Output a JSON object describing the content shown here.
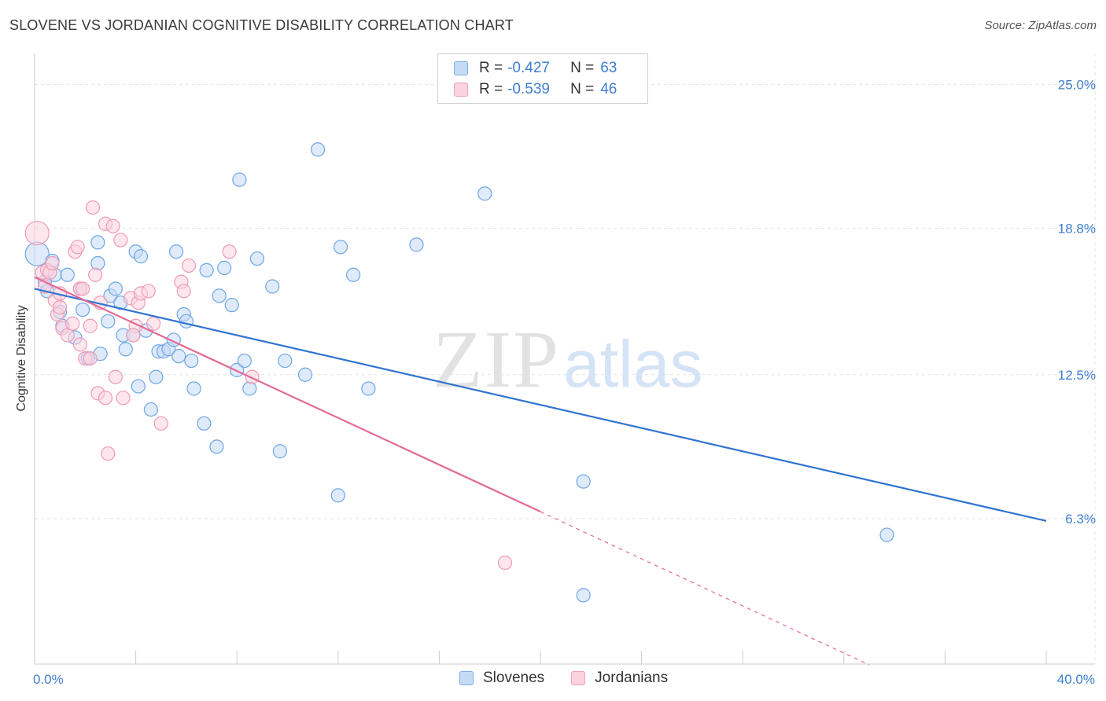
{
  "title": "SLOVENE VS JORDANIAN COGNITIVE DISABILITY CORRELATION CHART",
  "source": "Source: ZipAtlas.com",
  "watermark": {
    "zip": "ZIP",
    "atlas": "atlas"
  },
  "legend": {
    "series": [
      {
        "r_label": "R =",
        "r_value": "-0.427",
        "n_label": "N =",
        "n_value": "63",
        "color": "#7aaee8",
        "fill": "#c5dbf5"
      },
      {
        "r_label": "R =",
        "r_value": "-0.539",
        "n_label": "N =",
        "n_value": "46",
        "color": "#f0a0b8",
        "fill": "#fbd3df"
      }
    ]
  },
  "chart_data": {
    "type": "scatter",
    "title": "SLOVENE VS JORDANIAN COGNITIVE DISABILITY CORRELATION CHART",
    "xlabel": "",
    "ylabel": "Cognitive Disability",
    "xlim": [
      0,
      40
    ],
    "ylim": [
      0,
      26
    ],
    "y_ticks": [
      {
        "value": 6.3,
        "label": "6.3%"
      },
      {
        "value": 12.5,
        "label": "12.5%"
      },
      {
        "value": 18.8,
        "label": "18.8%"
      },
      {
        "value": 25.0,
        "label": "25.0%"
      }
    ],
    "x_tick_labels": [
      {
        "value": 0,
        "label": "0.0%"
      },
      {
        "value": 40,
        "label": "40.0%"
      }
    ],
    "x_minor_ticks": [
      0,
      4,
      8,
      12,
      16,
      20,
      24,
      28,
      32,
      36,
      40
    ],
    "grid": true,
    "series": [
      {
        "name": "Slovenes",
        "color": "#6ea6e6",
        "fill": "#c5dbf5",
        "trend_color": "#2f74d0",
        "trend": {
          "x0": 0,
          "y0": 16.2,
          "x1": 40,
          "y1": 6.2
        },
        "points": [
          [
            0.1,
            17.7
          ],
          [
            0.4,
            16.5
          ],
          [
            0.5,
            16.1
          ],
          [
            0.7,
            17.4
          ],
          [
            0.8,
            16.8
          ],
          [
            1.0,
            15.2
          ],
          [
            1.1,
            14.6
          ],
          [
            1.3,
            16.8
          ],
          [
            1.6,
            14.1
          ],
          [
            1.8,
            16.2
          ],
          [
            1.9,
            15.3
          ],
          [
            2.1,
            13.2
          ],
          [
            2.5,
            17.3
          ],
          [
            2.5,
            18.2
          ],
          [
            2.6,
            13.4
          ],
          [
            2.9,
            14.8
          ],
          [
            3.0,
            15.9
          ],
          [
            3.2,
            16.2
          ],
          [
            3.4,
            15.6
          ],
          [
            3.5,
            14.2
          ],
          [
            3.6,
            13.6
          ],
          [
            3.9,
            14.2
          ],
          [
            4.0,
            17.8
          ],
          [
            4.1,
            12.0
          ],
          [
            4.2,
            17.6
          ],
          [
            4.4,
            14.4
          ],
          [
            4.6,
            11.0
          ],
          [
            4.8,
            12.4
          ],
          [
            4.9,
            13.5
          ],
          [
            5.1,
            13.5
          ],
          [
            5.3,
            13.6
          ],
          [
            5.5,
            14.0
          ],
          [
            5.6,
            17.8
          ],
          [
            5.7,
            13.3
          ],
          [
            5.9,
            15.1
          ],
          [
            6.0,
            14.8
          ],
          [
            6.2,
            13.1
          ],
          [
            6.3,
            11.9
          ],
          [
            6.7,
            10.4
          ],
          [
            6.8,
            17.0
          ],
          [
            7.2,
            9.4
          ],
          [
            7.3,
            15.9
          ],
          [
            7.5,
            17.1
          ],
          [
            7.8,
            15.5
          ],
          [
            8.0,
            12.7
          ],
          [
            8.1,
            20.9
          ],
          [
            8.3,
            13.1
          ],
          [
            8.5,
            11.9
          ],
          [
            8.8,
            17.5
          ],
          [
            9.4,
            16.3
          ],
          [
            9.7,
            9.2
          ],
          [
            9.9,
            13.1
          ],
          [
            10.7,
            12.5
          ],
          [
            11.2,
            22.2
          ],
          [
            12.0,
            7.3
          ],
          [
            12.1,
            18.0
          ],
          [
            12.6,
            16.8
          ],
          [
            13.2,
            11.9
          ],
          [
            15.1,
            18.1
          ],
          [
            17.8,
            20.3
          ],
          [
            21.7,
            7.9
          ],
          [
            33.7,
            5.6
          ],
          [
            21.7,
            3.0
          ]
        ]
      },
      {
        "name": "Jordanians",
        "color": "#f09ab5",
        "fill": "#fbd3df",
        "trend_color": "#e46a92",
        "trend": {
          "x0": 0,
          "y0": 16.7,
          "x1": 20,
          "y1": 6.6
        },
        "trend_dashed": {
          "x0": 20,
          "y0": 6.6,
          "x1": 33,
          "y1": 0.0
        },
        "points": [
          [
            0.1,
            18.6
          ],
          [
            0.3,
            16.9
          ],
          [
            0.4,
            16.3
          ],
          [
            0.5,
            17.0
          ],
          [
            0.6,
            16.9
          ],
          [
            0.7,
            17.3
          ],
          [
            0.8,
            15.7
          ],
          [
            0.9,
            15.1
          ],
          [
            1.0,
            15.4
          ],
          [
            1.1,
            14.5
          ],
          [
            1.3,
            14.2
          ],
          [
            1.5,
            14.7
          ],
          [
            1.6,
            17.8
          ],
          [
            1.7,
            18.0
          ],
          [
            1.8,
            13.8
          ],
          [
            1.8,
            16.2
          ],
          [
            1.9,
            16.2
          ],
          [
            2.0,
            13.2
          ],
          [
            2.2,
            13.2
          ],
          [
            2.2,
            14.6
          ],
          [
            2.3,
            19.7
          ],
          [
            2.4,
            16.8
          ],
          [
            2.5,
            11.7
          ],
          [
            2.6,
            15.6
          ],
          [
            2.8,
            11.5
          ],
          [
            2.9,
            9.1
          ],
          [
            2.8,
            19.0
          ],
          [
            3.1,
            18.9
          ],
          [
            3.2,
            12.4
          ],
          [
            3.4,
            18.3
          ],
          [
            3.5,
            11.5
          ],
          [
            3.8,
            15.8
          ],
          [
            4.0,
            14.6
          ],
          [
            4.1,
            15.6
          ],
          [
            4.2,
            16.0
          ],
          [
            4.5,
            16.1
          ],
          [
            4.7,
            14.7
          ],
          [
            5.0,
            10.4
          ],
          [
            5.8,
            16.5
          ],
          [
            5.9,
            16.1
          ],
          [
            6.1,
            17.2
          ],
          [
            7.7,
            17.8
          ],
          [
            8.6,
            12.4
          ],
          [
            18.6,
            4.4
          ],
          [
            3.9,
            14.2
          ],
          [
            1.0,
            16.0
          ]
        ]
      }
    ]
  }
}
